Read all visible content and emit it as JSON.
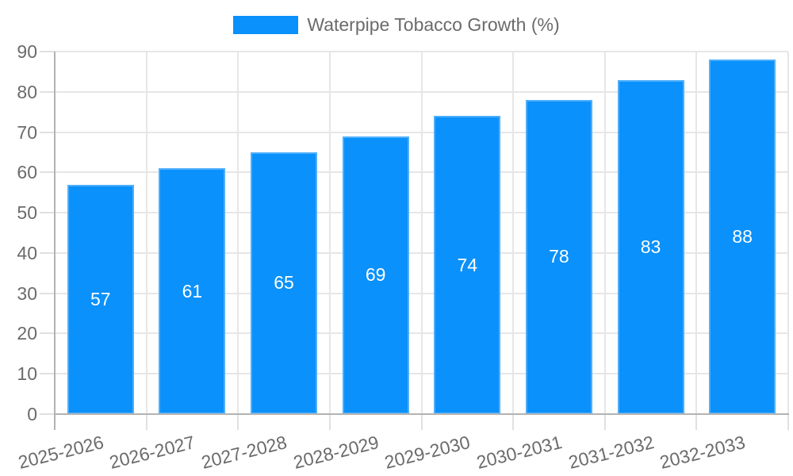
{
  "legend": {
    "label": "Waterpipe Tobacco Growth (%)",
    "swatch_color": "#0a91fb",
    "position": "top"
  },
  "chart_data": {
    "type": "bar",
    "title": "",
    "series_name": "Waterpipe Tobacco Growth (%)",
    "categories": [
      "2025-2026",
      "2026-2027",
      "2027-2028",
      "2028-2029",
      "2029-2030",
      "2030-2031",
      "2031-2032",
      "2032-2033"
    ],
    "values": [
      57,
      61,
      65,
      69,
      74,
      78,
      83,
      88
    ],
    "value_labels": [
      "57",
      "61",
      "65",
      "69",
      "74",
      "78",
      "83",
      "88"
    ],
    "xlabel": "",
    "ylabel": "",
    "ylim": [
      0,
      90
    ],
    "yticks": [
      0,
      10,
      20,
      30,
      40,
      50,
      60,
      70,
      80,
      90
    ],
    "grid": true,
    "legend_position": "top",
    "colors": {
      "bar": "#0a91fb",
      "value_label": "#ffffff",
      "axis_text": "#6b6b6b",
      "gridline": "#e6e6e6",
      "axis_line": "#b3b3b3",
      "tick": "#e0e0e0",
      "background": "#ffffff"
    }
  }
}
